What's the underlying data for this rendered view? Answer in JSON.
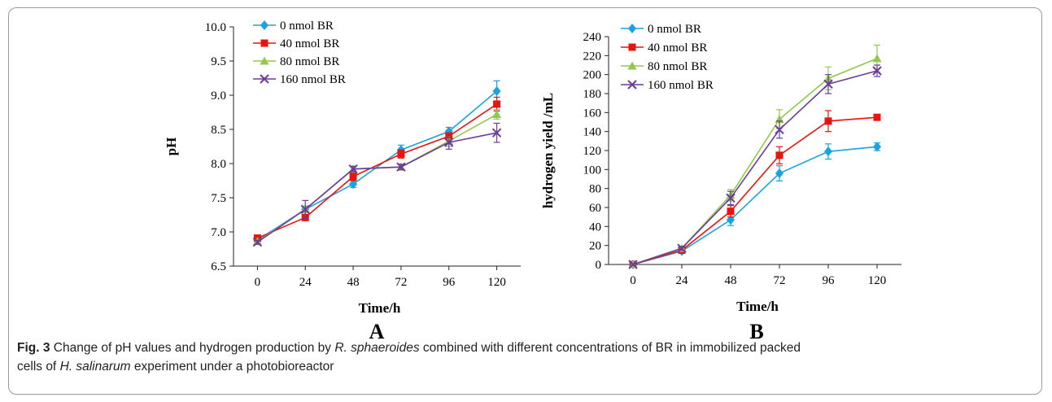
{
  "chart_data": [
    {
      "type": "line",
      "panel_label": "A",
      "xlabel": "Time/h",
      "ylabel": "pH",
      "x": [
        0,
        24,
        48,
        72,
        96,
        120
      ],
      "xticks": [
        "0",
        "24",
        "48",
        "72",
        "96",
        "120"
      ],
      "ylim": [
        6.5,
        10.0
      ],
      "yticks": [
        "6.5",
        "7.0",
        "7.5",
        "8.0",
        "8.5",
        "9.0",
        "9.5",
        "10.0"
      ],
      "legend_position": "top-left",
      "series": [
        {
          "name": "0 nmol BR",
          "color": "#1aa3e0",
          "marker": "diamond",
          "values": [
            6.88,
            7.33,
            7.7,
            8.2,
            8.47,
            9.06
          ],
          "errors": [
            0.03,
            0.05,
            0.05,
            0.07,
            0.06,
            0.15
          ]
        },
        {
          "name": "40 nmol BR",
          "color": "#e8150f",
          "marker": "square",
          "values": [
            6.91,
            7.21,
            7.81,
            8.14,
            8.4,
            8.87
          ],
          "errors": [
            0.03,
            0.04,
            0.06,
            0.06,
            0.05,
            0.1
          ]
        },
        {
          "name": "80 nmol BR",
          "color": "#92c94a",
          "marker": "triangle",
          "values": [
            6.86,
            7.33,
            7.92,
            7.95,
            8.33,
            8.72
          ],
          "errors": [
            0.03,
            0.05,
            0.04,
            0.04,
            0.08,
            0.07
          ]
        },
        {
          "name": "160 nmol BR",
          "color": "#6b3d9a",
          "marker": "x",
          "values": [
            6.85,
            7.33,
            7.92,
            7.95,
            8.31,
            8.45
          ],
          "errors": [
            0.03,
            0.13,
            0.04,
            0.04,
            0.1,
            0.14
          ]
        }
      ]
    },
    {
      "type": "line",
      "panel_label": "B",
      "xlabel": "Time/h",
      "ylabel": "hydrogen yield /mL",
      "x": [
        0,
        24,
        48,
        72,
        96,
        120
      ],
      "xticks": [
        "0",
        "24",
        "48",
        "72",
        "96",
        "120"
      ],
      "ylim": [
        0,
        240
      ],
      "yticks": [
        "0",
        "20",
        "40",
        "60",
        "80",
        "100",
        "120",
        "140",
        "160",
        "180",
        "200",
        "220",
        "240"
      ],
      "legend_position": "top-left",
      "series": [
        {
          "name": "0 nmol BR",
          "color": "#1aa3e0",
          "marker": "diamond",
          "values": [
            0,
            14,
            47,
            96,
            119,
            124
          ],
          "errors": [
            1,
            2,
            6,
            8,
            8,
            4
          ]
        },
        {
          "name": "40 nmol BR",
          "color": "#e8150f",
          "marker": "square",
          "values": [
            0,
            15,
            56,
            115,
            151,
            155
          ],
          "errors": [
            1,
            2,
            6,
            9,
            11,
            3
          ]
        },
        {
          "name": "80 nmol BR",
          "color": "#92c94a",
          "marker": "triangle",
          "values": [
            0,
            17,
            73,
            153,
            196,
            217
          ],
          "errors": [
            1,
            2,
            6,
            10,
            12,
            14
          ]
        },
        {
          "name": "160 nmol BR",
          "color": "#6b3d9a",
          "marker": "x",
          "values": [
            0,
            17,
            70,
            142,
            190,
            204
          ],
          "errors": [
            1,
            2,
            7,
            9,
            10,
            6
          ]
        }
      ]
    }
  ],
  "caption": {
    "fig_label": "Fig. 3",
    "line1_a": " Change of pH values and hydrogen production by ",
    "line1_b": "R. sphaeroides",
    "line1_c": " combined with different concentrations of BR in immobilized packed",
    "line2_a": "cells of ",
    "line2_b": "H. salinarum",
    "line2_c": " experiment under a photobioreactor"
  }
}
